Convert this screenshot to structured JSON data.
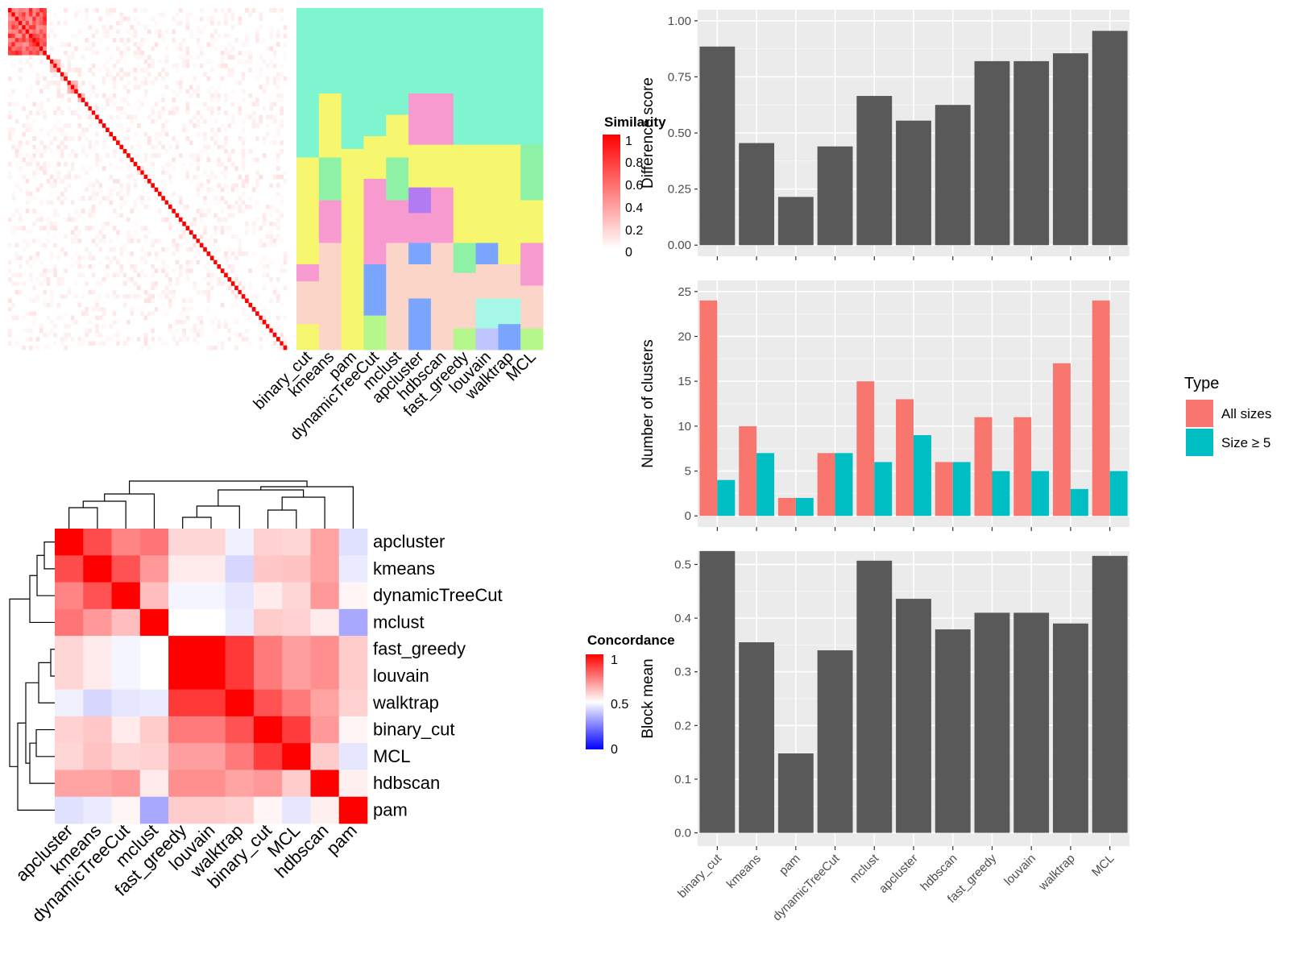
{
  "colors": {
    "heat_high": "#ff0000",
    "heat_mid": "#ffffff",
    "heat_low": "#0000ff",
    "bar_fill": "#595959",
    "panel_bg": "#ebebeb",
    "all_sizes": "#f8766d",
    "size_ge5": "#00bfc4"
  },
  "legends": {
    "similarity": {
      "title": "Similarity",
      "ticks": [
        "1",
        "0.8",
        "0.6",
        "0.4",
        "0.2",
        "0"
      ]
    },
    "concordance": {
      "title": "Concordance",
      "ticks": [
        "1",
        "0.5",
        "0"
      ]
    },
    "type": {
      "title": "Type",
      "items": [
        "All sizes",
        "Size ≥ 5"
      ]
    }
  },
  "partition_methods": [
    "binary_cut",
    "kmeans",
    "pam",
    "dynamicTreeCut",
    "mclust",
    "apcluster",
    "hdbscan",
    "fast_greedy",
    "louvain",
    "walktrap",
    "MCL"
  ],
  "concordance": {
    "row_labels": [
      "apcluster",
      "kmeans",
      "dynamicTreeCut",
      "mclust",
      "fast_greedy",
      "louvain",
      "walktrap",
      "binary_cut",
      "MCL",
      "hdbscan",
      "pam"
    ],
    "col_labels": [
      "apcluster",
      "kmeans",
      "dynamicTreeCut",
      "mclust",
      "fast_greedy",
      "louvain",
      "walktrap",
      "binary_cut",
      "MCL",
      "hdbscan",
      "pam"
    ],
    "matrix": [
      [
        1.0,
        0.85,
        0.74,
        0.77,
        0.58,
        0.58,
        0.47,
        0.59,
        0.58,
        0.68,
        0.44
      ],
      [
        0.85,
        1.0,
        0.84,
        0.7,
        0.54,
        0.54,
        0.42,
        0.61,
        0.62,
        0.68,
        0.46
      ],
      [
        0.74,
        0.84,
        1.0,
        0.63,
        0.48,
        0.48,
        0.45,
        0.54,
        0.58,
        0.7,
        0.52
      ],
      [
        0.77,
        0.7,
        0.63,
        1.0,
        0.5,
        0.5,
        0.46,
        0.6,
        0.59,
        0.54,
        0.33
      ],
      [
        0.58,
        0.54,
        0.48,
        0.5,
        1.0,
        1.0,
        0.89,
        0.76,
        0.69,
        0.72,
        0.6
      ],
      [
        0.58,
        0.54,
        0.48,
        0.5,
        1.0,
        1.0,
        0.89,
        0.76,
        0.69,
        0.72,
        0.6
      ],
      [
        0.47,
        0.42,
        0.45,
        0.46,
        0.89,
        0.89,
        1.0,
        0.84,
        0.76,
        0.68,
        0.59
      ],
      [
        0.59,
        0.61,
        0.54,
        0.6,
        0.76,
        0.76,
        0.84,
        1.0,
        0.88,
        0.7,
        0.52
      ],
      [
        0.58,
        0.62,
        0.58,
        0.59,
        0.69,
        0.69,
        0.76,
        0.88,
        1.0,
        0.6,
        0.45
      ],
      [
        0.68,
        0.68,
        0.7,
        0.54,
        0.72,
        0.72,
        0.68,
        0.7,
        0.6,
        1.0,
        0.53
      ],
      [
        0.44,
        0.46,
        0.52,
        0.33,
        0.6,
        0.6,
        0.59,
        0.52,
        0.45,
        0.53,
        1.0
      ]
    ]
  },
  "chart_data": [
    {
      "type": "bar",
      "categories": [
        "binary_cut",
        "kmeans",
        "pam",
        "dynamicTreeCut",
        "mclust",
        "apcluster",
        "hdbscan",
        "fast_greedy",
        "louvain",
        "walktrap",
        "MCL"
      ],
      "values": [
        0.885,
        0.455,
        0.215,
        0.44,
        0.665,
        0.555,
        0.625,
        0.82,
        0.82,
        0.855,
        0.955
      ],
      "ylabel": "Difference score",
      "ylim": [
        0,
        1.0
      ],
      "yticks": [
        "0.00",
        "0.25",
        "0.50",
        "0.75",
        "1.00"
      ],
      "grid": true
    },
    {
      "type": "bar",
      "categories": [
        "binary_cut",
        "kmeans",
        "pam",
        "dynamicTreeCut",
        "mclust",
        "apcluster",
        "hdbscan",
        "fast_greedy",
        "louvain",
        "walktrap",
        "MCL"
      ],
      "series": [
        {
          "name": "All sizes",
          "values": [
            24,
            10,
            2,
            7,
            15,
            13,
            6,
            11,
            11,
            17,
            24
          ]
        },
        {
          "name": "Size ≥ 5",
          "values": [
            4,
            7,
            2,
            7,
            6,
            9,
            6,
            5,
            5,
            3,
            5
          ]
        }
      ],
      "ylabel": "Number of clusters",
      "ylim": [
        0,
        25
      ],
      "yticks": [
        "0",
        "5",
        "10",
        "15",
        "20",
        "25"
      ],
      "legend": "right",
      "grid": true
    },
    {
      "type": "bar",
      "categories": [
        "binary_cut",
        "kmeans",
        "pam",
        "dynamicTreeCut",
        "mclust",
        "apcluster",
        "hdbscan",
        "fast_greedy",
        "louvain",
        "walktrap",
        "MCL"
      ],
      "values": [
        0.525,
        0.355,
        0.148,
        0.34,
        0.507,
        0.436,
        0.379,
        0.41,
        0.41,
        0.39,
        0.516
      ],
      "ylabel": "Block mean",
      "ylim": [
        0,
        0.55
      ],
      "yticks": [
        "0.0",
        "0.1",
        "0.2",
        "0.3",
        "0.4",
        "0.5"
      ],
      "grid": true
    }
  ]
}
